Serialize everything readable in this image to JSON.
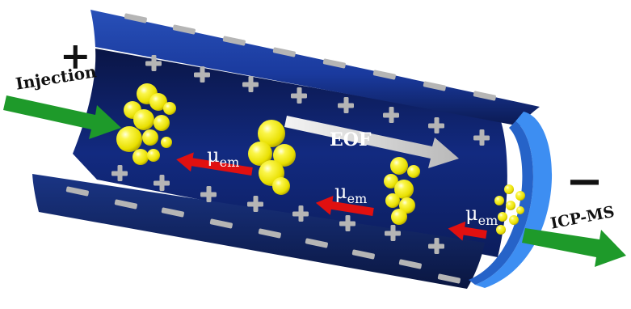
{
  "labels": {
    "injection": "Injection",
    "icp_ms": "ICP-MS",
    "eof": "EOF",
    "anode": "+",
    "cathode": "−",
    "mobility_symbol": "μ",
    "mobility_subscript": "em"
  },
  "colors": {
    "tube_dark": "#0d1f5c",
    "tube_mid": "#1a3a9e",
    "tube_rim": "#3f8ff0",
    "particle": "#f2ee00",
    "mobility_arrow": "#e01010",
    "flow_arrow": "#1e9a2a",
    "eof_arrow": "#d8d8d8",
    "charge_sign": "#b5b5b5"
  }
}
